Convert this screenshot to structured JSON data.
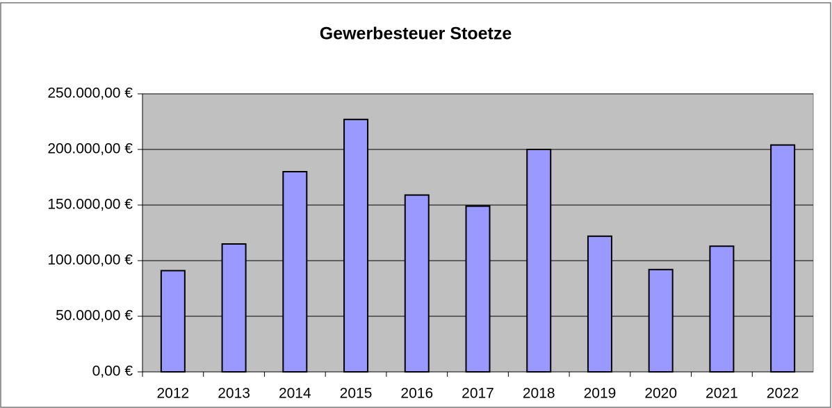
{
  "chart_data": {
    "type": "bar",
    "title": "Gewerbesteuer Stoetze",
    "categories": [
      "2012",
      "2013",
      "2014",
      "2015",
      "2016",
      "2017",
      "2018",
      "2019",
      "2020",
      "2021",
      "2022"
    ],
    "values": [
      91000,
      115000,
      180000,
      227000,
      159000,
      149000,
      200000,
      122000,
      92000,
      113000,
      204000
    ],
    "color": "#9999ff",
    "ylim": [
      0,
      250000
    ],
    "yticks": [
      {
        "value": 0,
        "label": "0,00 €"
      },
      {
        "value": 50000,
        "label": "50.000,00 €"
      },
      {
        "value": 100000,
        "label": "100.000,00 €"
      },
      {
        "value": 150000,
        "label": "150.000,00 €"
      },
      {
        "value": 200000,
        "label": "200.000,00 €"
      },
      {
        "value": 250000,
        "label": "250.000,00 €"
      }
    ],
    "grid": true
  }
}
